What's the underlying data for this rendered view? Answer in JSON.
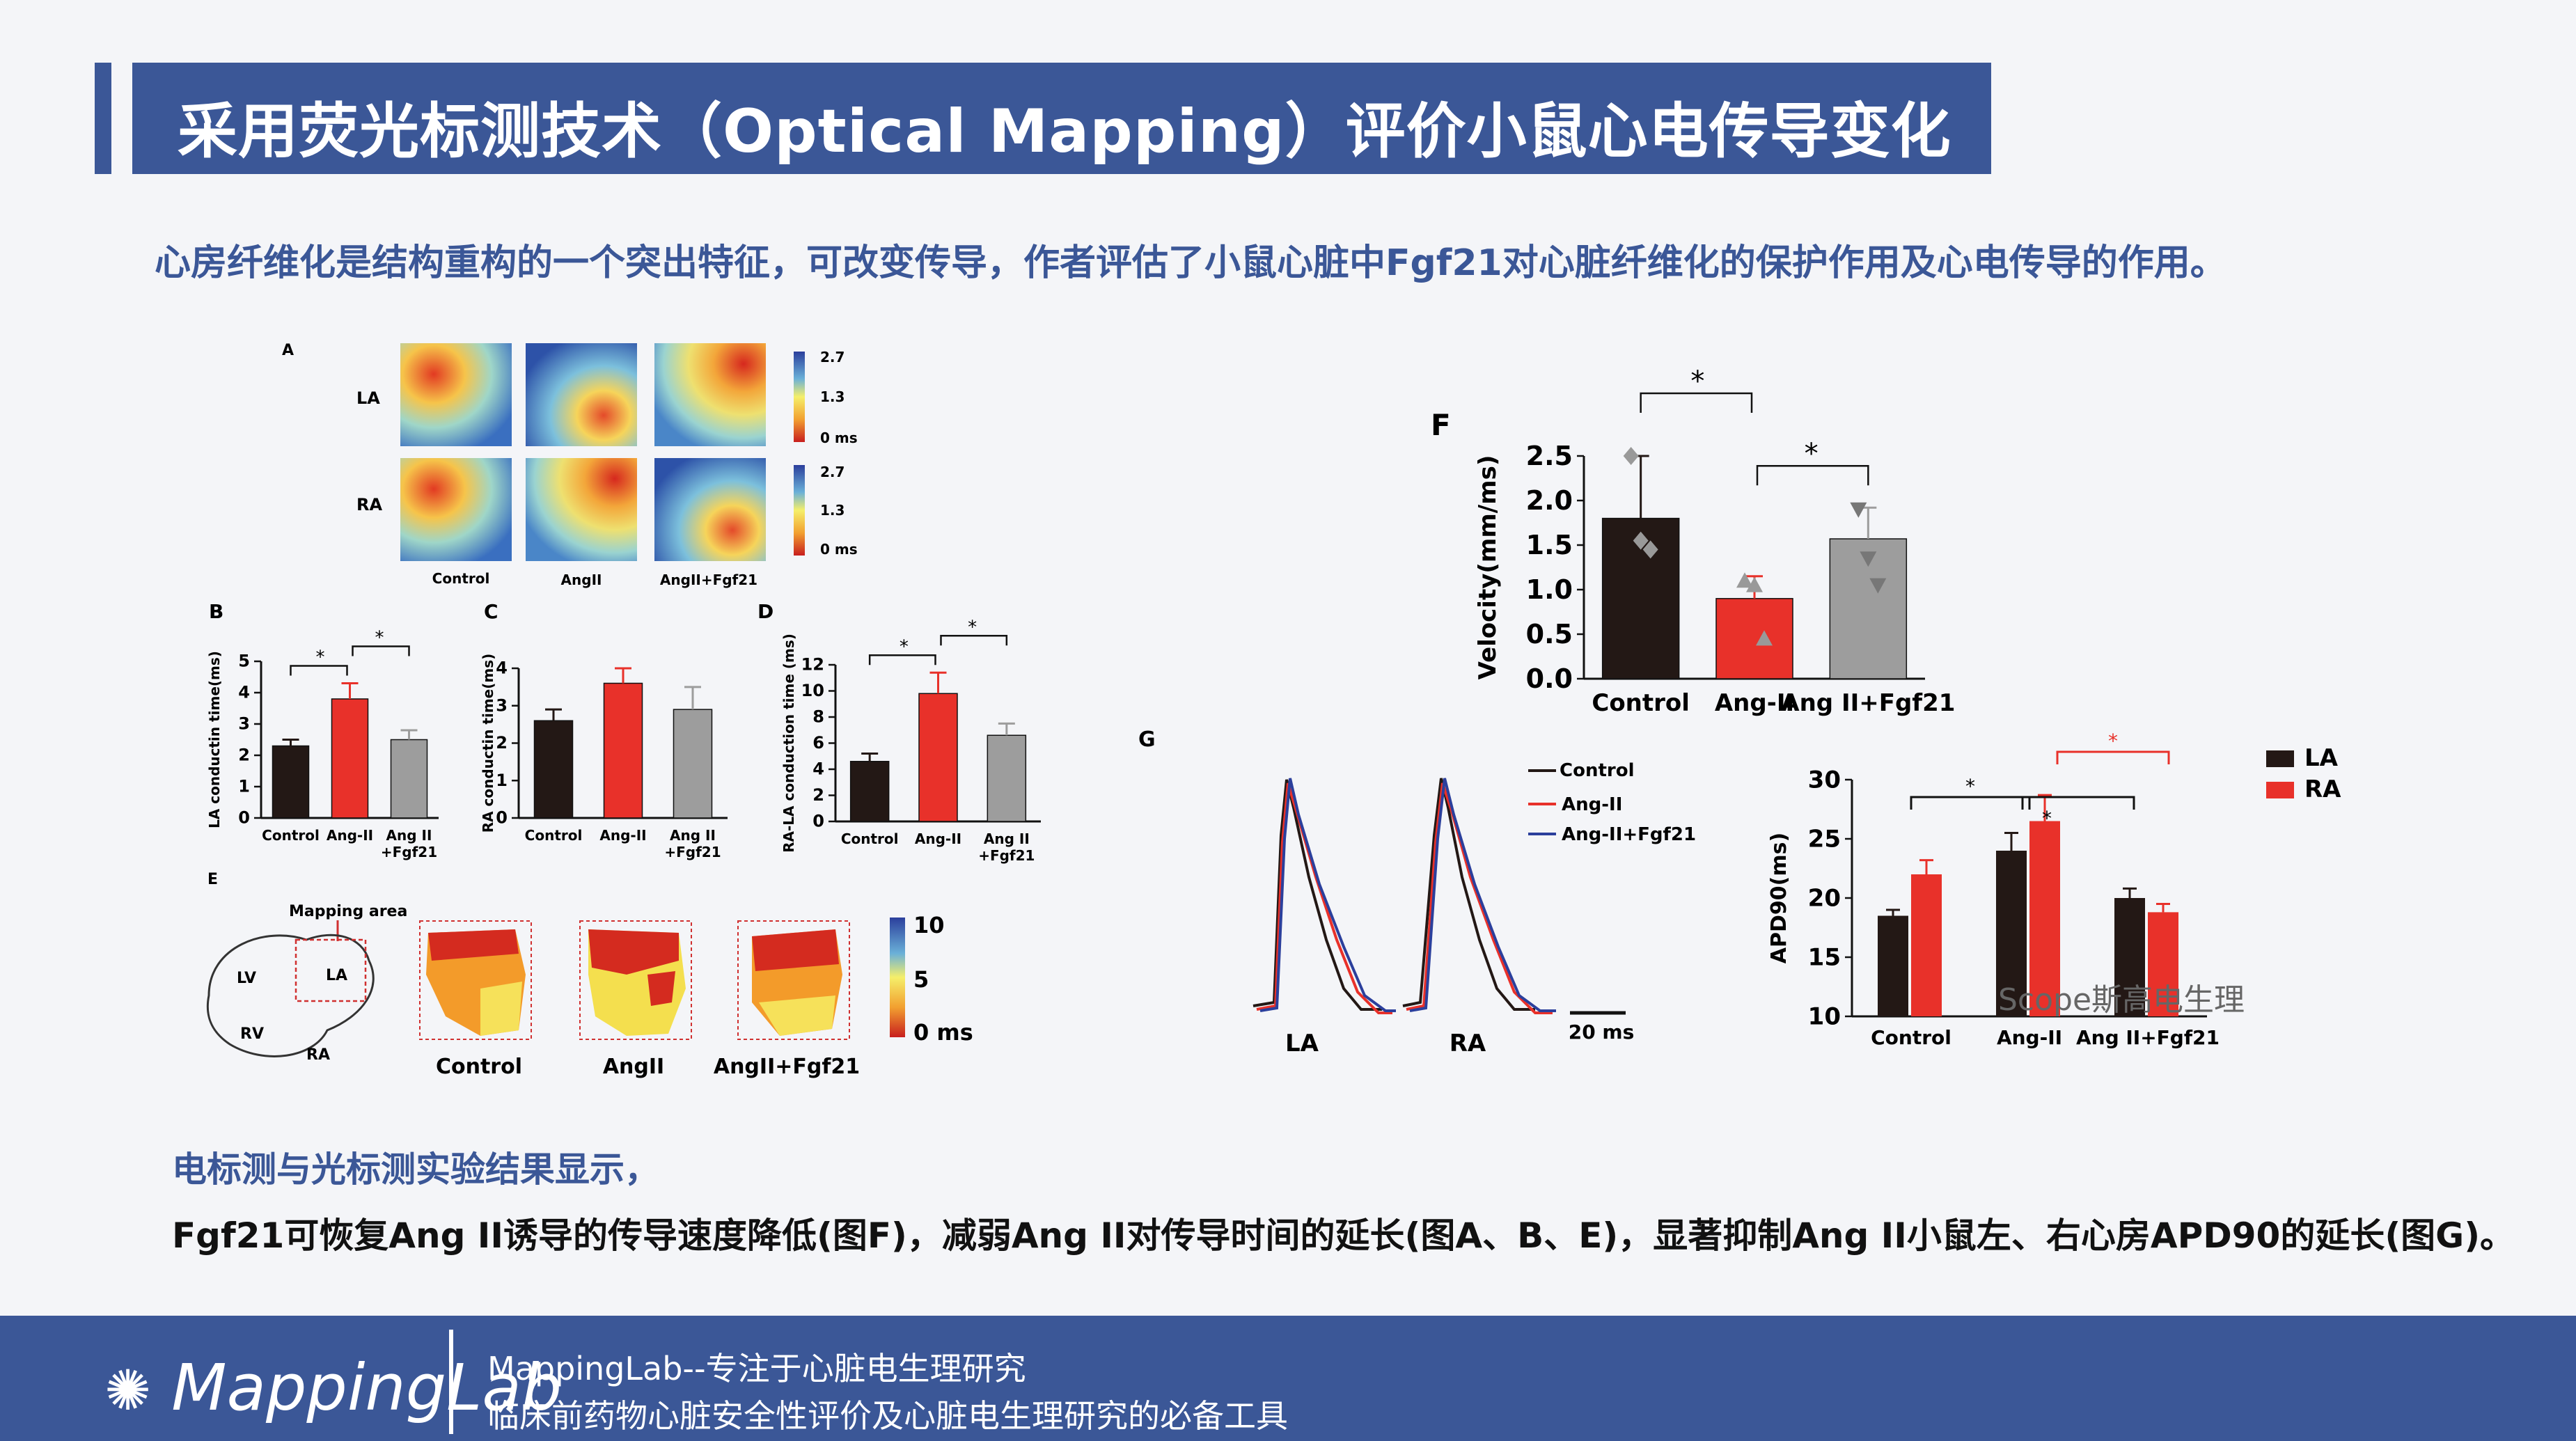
{
  "slide": {
    "title": "采用荧光标测技术（Optical Mapping）评价小鼠心电传导变化",
    "intro": "心房纤维化是结构重构的一个突出特征，可改变传导，作者评估了小鼠心脏中Fgf21对心脏纤维化的保护作用及心电传导的作用。",
    "results_heading": "电标测与光标测实验结果显示，",
    "results_body": "Fgf21可恢复Ang II诱导的传导速度降低(图F)，减弱Ang II对传导时间的延长(图A、B、E)，显著抑制Ang II小鼠左、右心房APD90的延长(图G)。"
  },
  "footer": {
    "logo_text": "MappingLab",
    "line1": "MappingLab--专注于心脏电生理研究",
    "line2": "临床前药物心脏安全性评价及心脏电生理研究的必备工具"
  },
  "watermark": "Scope斯高电生理",
  "colors": {
    "control": "#231815",
    "ang": "#e8312a",
    "fgf": "#9d9d9d",
    "accent": "#3b5797"
  },
  "panel_a": {
    "label": "A",
    "rows": [
      "LA",
      "RA"
    ],
    "cols": [
      "Control",
      "AngII",
      "AngII+Fgf21"
    ],
    "scale_ticks": [
      "2.7",
      "1.3",
      "0 ms"
    ]
  },
  "panel_e": {
    "label": "E",
    "mapping_area": "Mapping area",
    "heart_labels": [
      "LV",
      "LA",
      "RV",
      "RA"
    ],
    "cols": [
      "Control",
      "AngII",
      "AngII+Fgf21"
    ],
    "scale_ticks": [
      "10",
      "5",
      "0 ms"
    ]
  },
  "panel_g_traces": {
    "label": "G",
    "legend": [
      "Control",
      "Ang-II",
      "Ang-II+Fgf21"
    ],
    "trace_labels": [
      "LA",
      "RA"
    ],
    "scale_bar": "20 ms"
  },
  "chart_data": [
    {
      "id": "B",
      "type": "bar",
      "label": "B",
      "categories": [
        "Control",
        "Ang-II",
        "Ang II\n+Fgf21"
      ],
      "values": [
        2.3,
        3.8,
        2.5
      ],
      "errors": [
        0.2,
        0.5,
        0.3
      ],
      "ylabel": "LA conductin time(ms)",
      "ylim": [
        0,
        5
      ],
      "yticks": [
        0,
        1,
        2,
        3,
        4,
        5
      ],
      "significance": [
        "*",
        "*"
      ]
    },
    {
      "id": "C",
      "type": "bar",
      "label": "C",
      "categories": [
        "Control",
        "Ang-II",
        "Ang II\n+Fgf21"
      ],
      "values": [
        2.6,
        3.6,
        2.9
      ],
      "errors": [
        0.3,
        0.4,
        0.6
      ],
      "ylabel": "RA conductin time(ms)",
      "ylim": [
        0,
        4
      ],
      "yticks": [
        0,
        1,
        2,
        3,
        4
      ]
    },
    {
      "id": "D",
      "type": "bar",
      "label": "D",
      "categories": [
        "Control",
        "Ang-II",
        "Ang II\n+Fgf21"
      ],
      "values": [
        4.6,
        9.8,
        6.6
      ],
      "errors": [
        0.6,
        1.6,
        0.9
      ],
      "ylabel": "RA-LA conduction time (ms)",
      "ylim": [
        0,
        12
      ],
      "yticks": [
        0,
        2,
        4,
        6,
        8,
        10,
        12
      ],
      "significance": [
        "*",
        "*"
      ]
    },
    {
      "id": "F",
      "type": "bar",
      "label": "F",
      "categories": [
        "Control",
        "Ang-II",
        "Ang II+Fgf21"
      ],
      "values": [
        1.8,
        0.9,
        1.57
      ],
      "errors": [
        0.7,
        0.25,
        0.35
      ],
      "points": [
        [
          2.5,
          1.55,
          1.45
        ],
        [
          1.1,
          1.05,
          0.45
        ],
        [
          1.9,
          1.35,
          1.05
        ]
      ],
      "ylabel": "Velocity(mm/ms)",
      "ylim": [
        0,
        2.5
      ],
      "yticks": [
        "0.0",
        "0.5",
        "1.0",
        "1.5",
        "2.0",
        "2.5"
      ],
      "significance": [
        "*",
        "*"
      ]
    },
    {
      "id": "G",
      "type": "bar",
      "label": "G",
      "categories": [
        "Control",
        "Ang-II",
        "Ang II+Fgf21"
      ],
      "series": [
        {
          "name": "LA",
          "values": [
            18.5,
            24.0,
            20.0
          ],
          "errors": [
            0.5,
            1.5,
            0.8
          ]
        },
        {
          "name": "RA",
          "values": [
            22.0,
            26.5,
            18.8
          ],
          "errors": [
            1.2,
            2.2,
            0.7
          ]
        }
      ],
      "ylabel": "APD90(ms)",
      "ylim": [
        10,
        30
      ],
      "yticks": [
        10,
        15,
        20,
        25,
        30
      ],
      "legend_position": "top-right",
      "significance": [
        "*",
        "*",
        "*"
      ]
    }
  ]
}
